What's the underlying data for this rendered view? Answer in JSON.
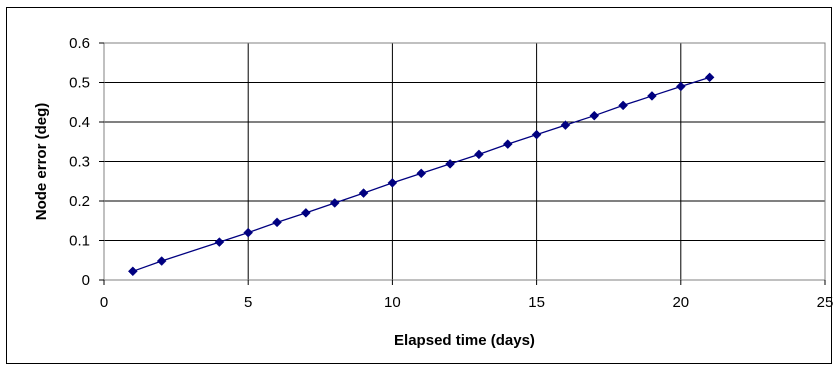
{
  "chart_data": {
    "type": "line",
    "title": "",
    "xlabel": "Elapsed time (days)",
    "ylabel": "Node error (deg)",
    "xlim": [
      0,
      25
    ],
    "ylim": [
      0,
      0.6
    ],
    "x_ticks": [
      0,
      5,
      10,
      15,
      20,
      25
    ],
    "y_ticks": [
      0,
      0.1,
      0.2,
      0.3,
      0.4,
      0.5,
      0.6
    ],
    "grid": true,
    "legend": "none",
    "series": [
      {
        "color": "#000080",
        "marker": "diamond",
        "x": [
          1,
          2,
          4,
          5,
          6,
          7,
          8,
          9,
          10,
          11,
          12,
          13,
          14,
          15,
          16,
          17,
          18,
          19,
          20,
          21
        ],
        "y": [
          0.022,
          0.048,
          0.096,
          0.12,
          0.146,
          0.17,
          0.195,
          0.22,
          0.246,
          0.27,
          0.294,
          0.318,
          0.344,
          0.368,
          0.392,
          0.416,
          0.442,
          0.466,
          0.49,
          0.513
        ]
      }
    ]
  }
}
